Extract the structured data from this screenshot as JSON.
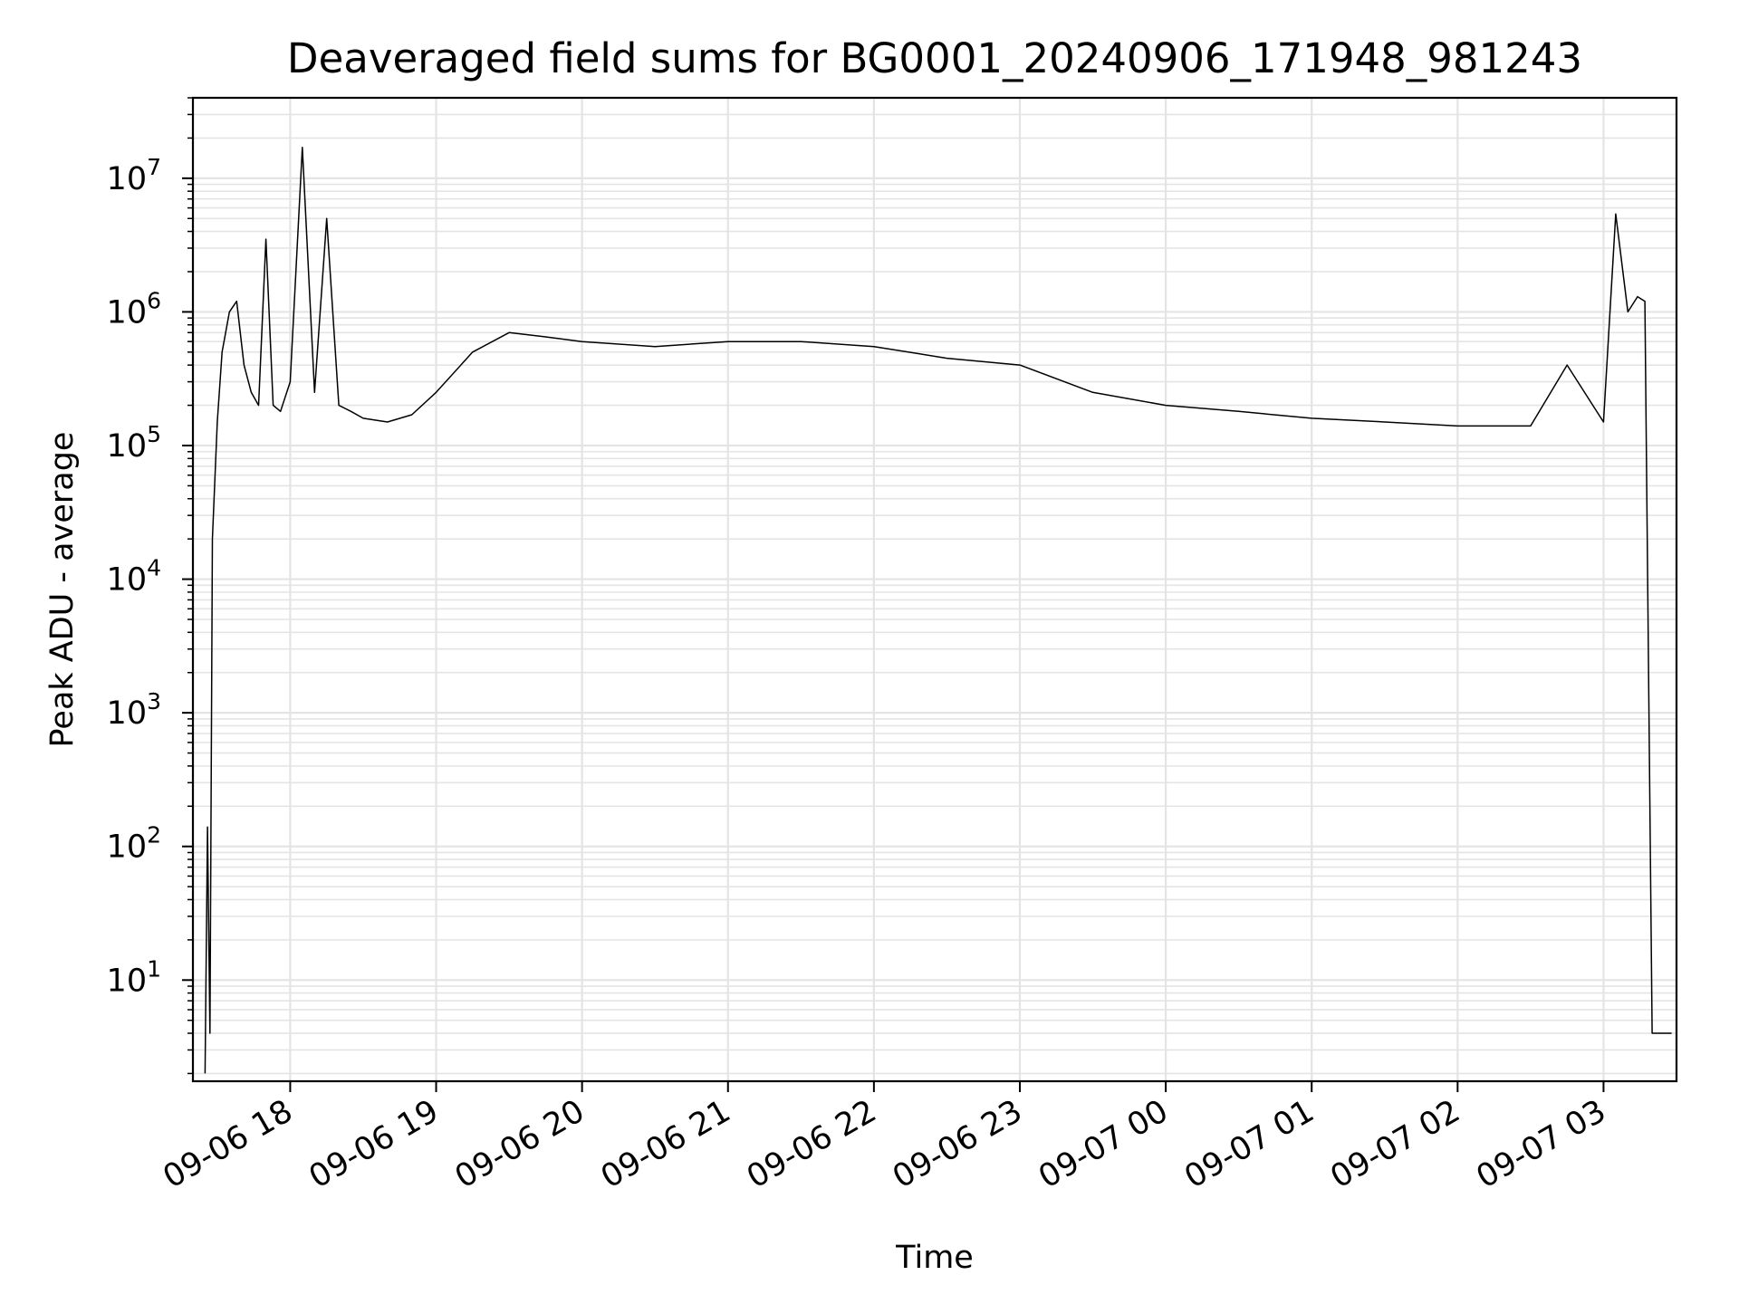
{
  "chart_data": {
    "type": "line",
    "title": "Deaveraged field sums for BG0001_20240906_171948_981243",
    "xlabel": "Time",
    "ylabel": "Peak ADU - average",
    "yscale": "log",
    "ylim": [
      1.75,
      40000000
    ],
    "xlim": [
      "2024-09-06 17:20",
      "2024-09-07 03:30"
    ],
    "grid": true,
    "line_color": "#000000",
    "grid_color": "#e4e4e4",
    "x_ticks": [
      {
        "value": "2024-09-06 18:00",
        "label": "09-06 18"
      },
      {
        "value": "2024-09-06 19:00",
        "label": "09-06 19"
      },
      {
        "value": "2024-09-06 20:00",
        "label": "09-06 20"
      },
      {
        "value": "2024-09-06 21:00",
        "label": "09-06 21"
      },
      {
        "value": "2024-09-06 22:00",
        "label": "09-06 22"
      },
      {
        "value": "2024-09-06 23:00",
        "label": "09-06 23"
      },
      {
        "value": "2024-09-07 00:00",
        "label": "09-07 00"
      },
      {
        "value": "2024-09-07 01:00",
        "label": "09-07 01"
      },
      {
        "value": "2024-09-07 02:00",
        "label": "09-07 02"
      },
      {
        "value": "2024-09-07 03:00",
        "label": "09-07 03"
      }
    ],
    "y_ticks": [
      {
        "value": 10,
        "base": "10",
        "exp": "1"
      },
      {
        "value": 100,
        "base": "10",
        "exp": "2"
      },
      {
        "value": 1000,
        "base": "10",
        "exp": "3"
      },
      {
        "value": 10000,
        "base": "10",
        "exp": "4"
      },
      {
        "value": 100000,
        "base": "10",
        "exp": "5"
      },
      {
        "value": 1000000,
        "base": "10",
        "exp": "6"
      },
      {
        "value": 10000000,
        "base": "10",
        "exp": "7"
      }
    ],
    "series": [
      {
        "x": [
          "2024-09-06 17:25",
          "2024-09-06 17:26",
          "2024-09-06 17:27",
          "2024-09-06 17:28",
          "2024-09-06 17:30",
          "2024-09-06 17:32",
          "2024-09-06 17:35",
          "2024-09-06 17:38",
          "2024-09-06 17:41",
          "2024-09-06 17:44",
          "2024-09-06 17:47",
          "2024-09-06 17:50",
          "2024-09-06 17:53",
          "2024-09-06 17:56",
          "2024-09-06 18:00",
          "2024-09-06 18:05",
          "2024-09-06 18:10",
          "2024-09-06 18:15",
          "2024-09-06 18:20",
          "2024-09-06 18:25",
          "2024-09-06 18:30",
          "2024-09-06 18:40",
          "2024-09-06 18:50",
          "2024-09-06 19:00",
          "2024-09-06 19:15",
          "2024-09-06 19:30",
          "2024-09-06 19:45",
          "2024-09-06 20:00",
          "2024-09-06 20:30",
          "2024-09-06 21:00",
          "2024-09-06 21:30",
          "2024-09-06 22:00",
          "2024-09-06 22:30",
          "2024-09-06 23:00",
          "2024-09-06 23:30",
          "2024-09-07 00:00",
          "2024-09-07 00:30",
          "2024-09-07 01:00",
          "2024-09-07 01:30",
          "2024-09-07 02:00",
          "2024-09-07 02:30",
          "2024-09-07 02:45",
          "2024-09-07 03:00",
          "2024-09-07 03:05",
          "2024-09-07 03:10",
          "2024-09-07 03:14",
          "2024-09-07 03:17",
          "2024-09-07 03:20",
          "2024-09-07 03:28"
        ],
        "y": [
          2,
          140,
          4,
          20000,
          150000,
          500000,
          1000000,
          1200000,
          400000,
          250000,
          200000,
          3500000,
          200000,
          180000,
          300000,
          17000000,
          250000,
          5000000,
          200000,
          180000,
          160000,
          150000,
          170000,
          250000,
          500000,
          700000,
          650000,
          600000,
          550000,
          600000,
          600000,
          550000,
          450000,
          400000,
          250000,
          200000,
          180000,
          160000,
          150000,
          140000,
          140000,
          400000,
          150000,
          5400000,
          1000000,
          1300000,
          1200000,
          4,
          4
        ]
      }
    ]
  }
}
